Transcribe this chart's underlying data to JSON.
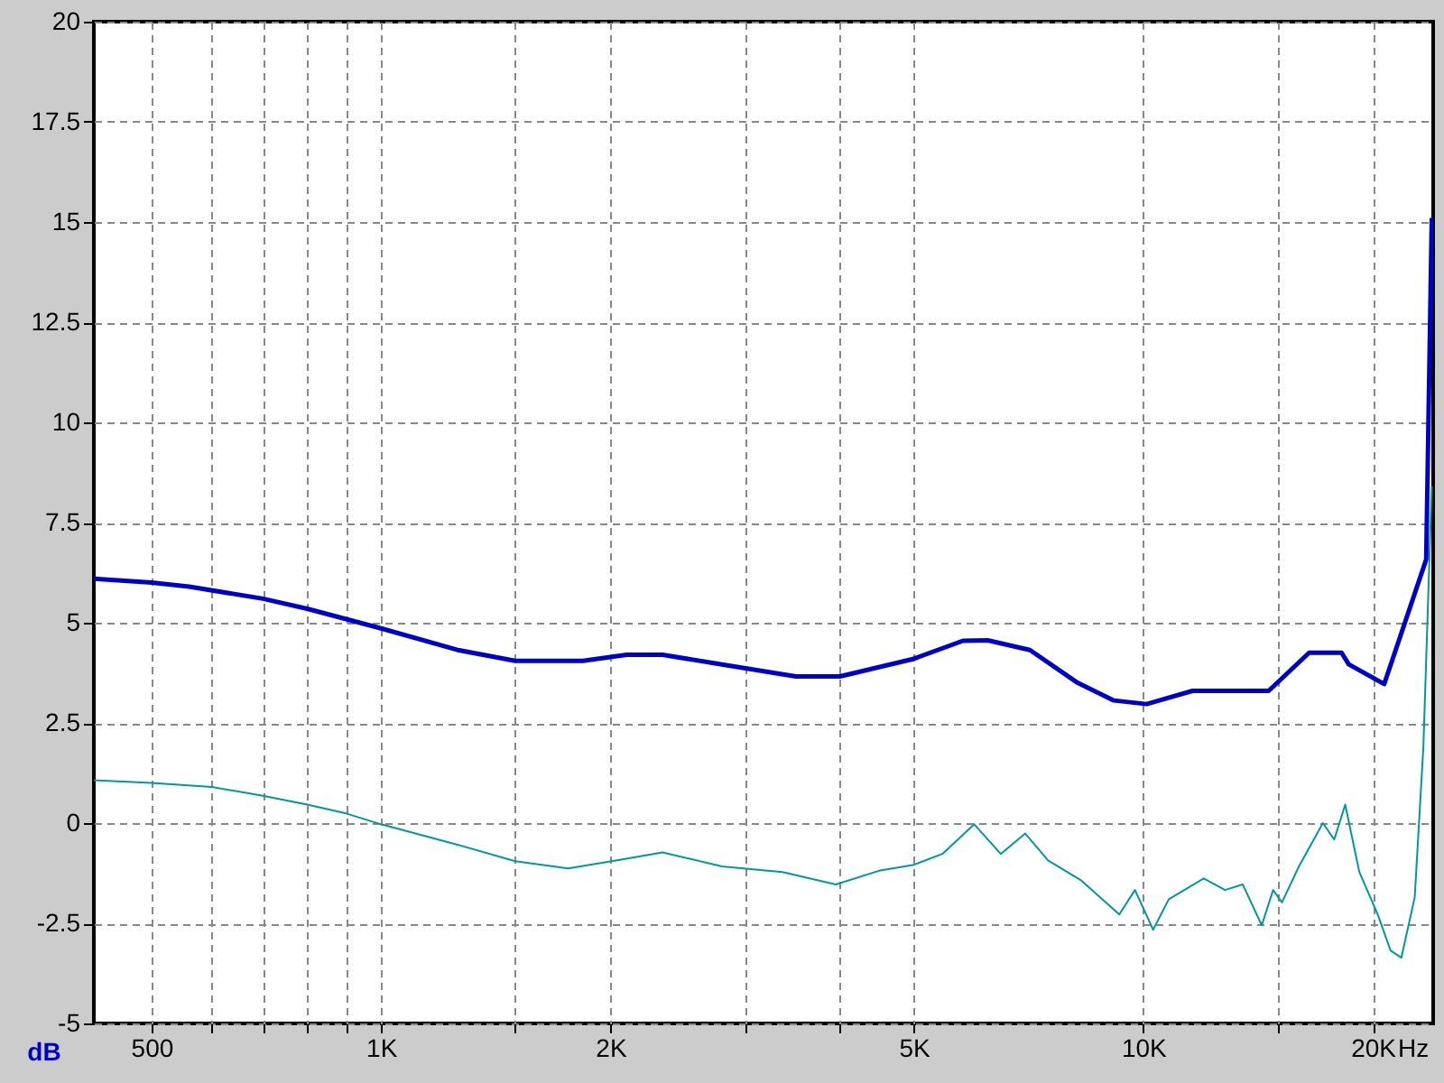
{
  "chart_data": {
    "type": "line",
    "ylabel": "dB",
    "xlabel": "Hz",
    "xlim": [
      420,
      24000
    ],
    "ylim": [
      -5,
      20
    ],
    "log": "x",
    "grid": true,
    "xticks": [
      {
        "value": 500,
        "label": "500"
      },
      {
        "value": 600,
        "label": null
      },
      {
        "value": 700,
        "label": null
      },
      {
        "value": 800,
        "label": null
      },
      {
        "value": 900,
        "label": null
      },
      {
        "value": 1000,
        "label": "1K"
      },
      {
        "value": 1500,
        "label": null
      },
      {
        "value": 2000,
        "label": "2K"
      },
      {
        "value": 3000,
        "label": null
      },
      {
        "value": 4000,
        "label": null
      },
      {
        "value": 5000,
        "label": "5K"
      },
      {
        "value": 10000,
        "label": "10K"
      },
      {
        "value": 15000,
        "label": null
      },
      {
        "value": 20000,
        "label": "20K"
      }
    ],
    "yticks": [
      -5,
      -2.5,
      0,
      2.5,
      5,
      7.5,
      10,
      12.5,
      15,
      17.5,
      20
    ],
    "series": [
      {
        "color": "#0000cc",
        "x": [
          420,
          500,
          560,
          700,
          800,
          1000,
          1260,
          1500,
          1840,
          2100,
          2340,
          2800,
          3500,
          4000,
          5000,
          5800,
          6250,
          7100,
          8200,
          9150,
          10100,
          11600,
          14600,
          16500,
          18200,
          18600,
          20700,
          23500,
          23900
        ],
        "values": [
          6.1,
          6.0,
          5.9,
          5.6,
          5.35,
          4.86,
          4.32,
          4.05,
          4.05,
          4.2,
          4.2,
          3.96,
          3.66,
          3.66,
          4.1,
          4.55,
          4.56,
          4.32,
          3.5,
          3.06,
          2.97,
          3.3,
          3.3,
          4.25,
          4.25,
          3.96,
          3.47,
          6.58,
          15.1
        ]
      },
      {
        "color": "#009999",
        "x": [
          420,
          500,
          600,
          700,
          800,
          900,
          1000,
          1260,
          1500,
          1760,
          2040,
          2340,
          2800,
          3360,
          3950,
          4500,
          5000,
          5450,
          6000,
          6500,
          7000,
          7500,
          8300,
          9300,
          9750,
          10300,
          10800,
          12000,
          12800,
          13500,
          14300,
          14800,
          15200,
          16000,
          17200,
          17800,
          18400,
          19200,
          20300,
          21100,
          21800,
          22700,
          23300,
          23900
        ],
        "values": [
          1.07,
          1.0,
          0.9,
          0.68,
          0.46,
          0.24,
          -0.03,
          -0.54,
          -0.95,
          -1.13,
          -0.93,
          -0.73,
          -1.08,
          -1.22,
          -1.53,
          -1.19,
          -1.04,
          -0.77,
          -0.03,
          -0.77,
          -0.26,
          -0.93,
          -1.44,
          -2.28,
          -1.67,
          -2.66,
          -1.9,
          -1.38,
          -1.67,
          -1.53,
          -2.55,
          -1.67,
          -1.98,
          -1.08,
          0.0,
          -0.41,
          0.46,
          -1.22,
          -2.28,
          -3.18,
          -3.36,
          -1.85,
          1.9,
          8.4
        ]
      }
    ]
  }
}
